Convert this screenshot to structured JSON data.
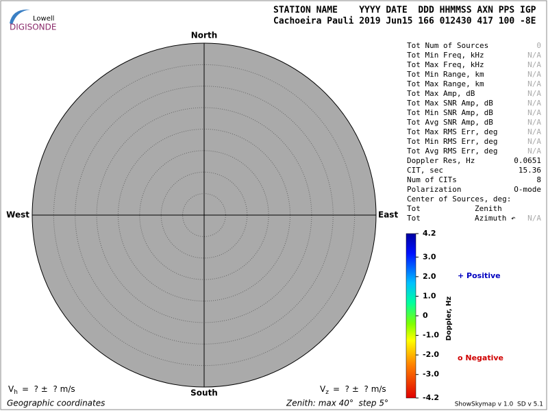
{
  "logo": {
    "top": "Lowell",
    "bottom": "DIGISONDE"
  },
  "header": {
    "labels": "STATION NAME    YYYY DATE  DDD HHMMSS AXN PPS IGP",
    "values": "Cachoeira Pauli 2019 Jun15 166 012430 417 100 -8E"
  },
  "skymap": {
    "north": "North",
    "south": "South",
    "east": "East",
    "west": "West"
  },
  "stats": [
    {
      "label": "Tot Num of Sources",
      "value": 0
    },
    {
      "label": "Tot Min Freq, kHz",
      "value": "N/A"
    },
    {
      "label": "Tot Max Freq, kHz",
      "value": "N/A"
    },
    {
      "label": "Tot Min Range, km",
      "value": "N/A"
    },
    {
      "label": "Tot Max Range, km",
      "value": "N/A"
    },
    {
      "label": "Tot Max Amp, dB",
      "value": "N/A"
    },
    {
      "label": "Tot Max SNR Amp, dB",
      "value": "N/A"
    },
    {
      "label": "Tot Min SNR Amp, dB",
      "value": "N/A"
    },
    {
      "label": "Tot Avg SNR Amp, dB",
      "value": "N/A"
    },
    {
      "label": "Tot Max RMS Err, deg",
      "value": "N/A"
    },
    {
      "label": "Tot Min RMS Err, deg",
      "value": "N/A"
    },
    {
      "label": "Tot Avg RMS Err, deg",
      "value": "N/A"
    },
    {
      "label": "Doppler Res, Hz",
      "value": 0.0651
    },
    {
      "label": "CIT, sec",
      "value": 15.36
    },
    {
      "label": "Num of CITs",
      "value": 8
    },
    {
      "label": "Polarization",
      "value": "O-mode"
    },
    {
      "label": "Center of Sources, deg:"
    },
    {
      "label": "Tot",
      "sub": "Zenith"
    },
    {
      "label": "Tot",
      "sub": "Azimuth ↶",
      "value": "N/A"
    }
  ],
  "colorbar": {
    "title": "Doppler, Hz",
    "lim": [
      -4.2,
      4.2
    ],
    "ticks": [
      4.2,
      {
        "value": 3,
        "label": "3.0"
      },
      {
        "value": 2,
        "label": "2.0"
      },
      {
        "value": 1,
        "label": "1.0"
      },
      0,
      {
        "value": -1,
        "label": "-1.0"
      },
      {
        "value": -2,
        "label": "-2.0"
      },
      {
        "value": -3,
        "label": "-3.0"
      },
      -4.2
    ]
  },
  "legend": {
    "positive": "+ Positive",
    "negative": "o Negative"
  },
  "velocity": {
    "h": {
      "symbol": "V",
      "subscript": "h",
      "text": "=  ? ±  ? m/s"
    },
    "z": {
      "symbol": "V",
      "subscript": "z",
      "text": "=  ? ±  ? m/s"
    }
  },
  "footer": {
    "left": "Geographic coordinates",
    "center": "Zenith: max 40°  step 5°",
    "right": "ShowSkymap v 1.0  SD v 5.1"
  }
}
